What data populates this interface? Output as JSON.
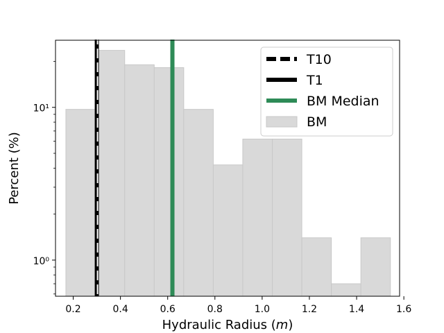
{
  "chart_data": {
    "type": "bar",
    "subtype": "histogram",
    "xlabel": "Hydraulic Radius (m)",
    "xlabel_parts": {
      "text": "Hydraulic Radius (",
      "italic": "m",
      "suffix": ")"
    },
    "ylabel": "Percent (%)",
    "x_range": [
      0.125,
      1.582
    ],
    "y_scale": "log",
    "y_range": [
      0.58,
      27.5
    ],
    "x_ticks": [
      0.2,
      0.4,
      0.6,
      0.8,
      1.0,
      1.2,
      1.4,
      1.6
    ],
    "x_tick_labels": [
      "0.2",
      "0.4",
      "0.6",
      "0.8",
      "1.0",
      "1.2",
      "1.4",
      "1.6"
    ],
    "y_ticks": [
      1,
      10
    ],
    "y_tick_labels": [
      "10⁰",
      "10¹"
    ],
    "bins": [
      {
        "x0": 0.169,
        "x1": 0.293,
        "value": 9.7
      },
      {
        "x0": 0.293,
        "x1": 0.418,
        "value": 23.6
      },
      {
        "x0": 0.418,
        "x1": 0.543,
        "value": 19.0
      },
      {
        "x0": 0.543,
        "x1": 0.668,
        "value": 18.2
      },
      {
        "x0": 0.668,
        "x1": 0.793,
        "value": 9.7
      },
      {
        "x0": 0.793,
        "x1": 0.918,
        "value": 4.2
      },
      {
        "x0": 0.918,
        "x1": 1.043,
        "value": 6.2
      },
      {
        "x0": 1.043,
        "x1": 1.168,
        "value": 6.2
      },
      {
        "x0": 1.168,
        "x1": 1.293,
        "value": 1.4
      },
      {
        "x0": 1.293,
        "x1": 1.418,
        "value": 0.7
      },
      {
        "x0": 1.418,
        "x1": 1.543,
        "value": 1.4
      }
    ],
    "vlines": [
      {
        "name": "T1",
        "x": 0.3,
        "style": "solid",
        "color": "#000000"
      },
      {
        "name": "T10",
        "x": 0.3,
        "style": "dashed",
        "color": "#000000"
      },
      {
        "name": "BM Median",
        "x": 0.62,
        "style": "solid",
        "color": "#2e8b57"
      }
    ],
    "legend": {
      "position": "top-right",
      "entries": [
        {
          "label": "T10",
          "kind": "dashed-line",
          "color": "#000000"
        },
        {
          "label": "T1",
          "kind": "line",
          "color": "#000000"
        },
        {
          "label": "BM Median",
          "kind": "line",
          "color": "#2e8b57"
        },
        {
          "label": "BM",
          "kind": "patch",
          "color": "#d9d9d9"
        }
      ]
    },
    "colors": {
      "bars": "#d9d9d9",
      "bar_edge": "#c8c8c8",
      "median": "#2e8b57",
      "threshold": "#000000"
    },
    "grid": false
  }
}
